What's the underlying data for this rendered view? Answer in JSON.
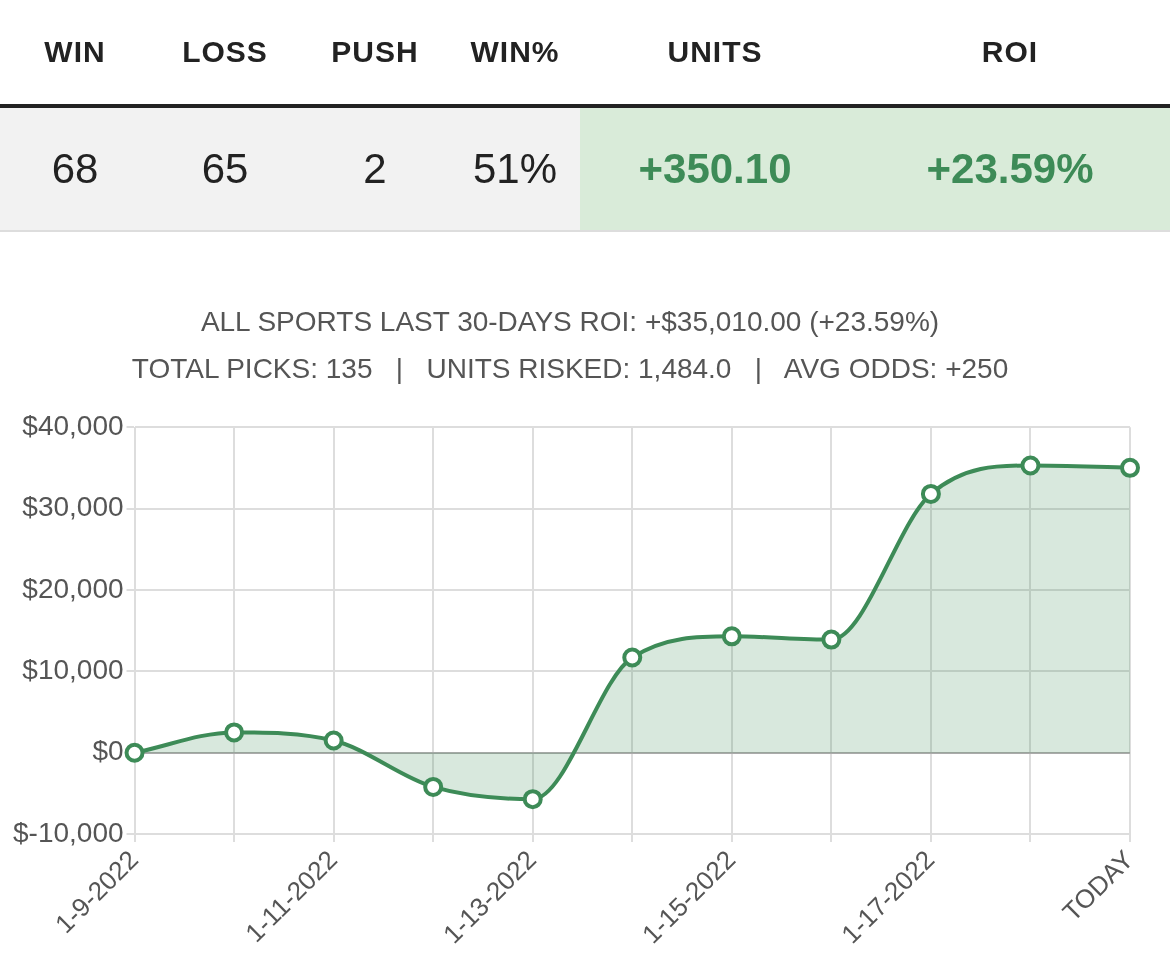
{
  "chart_data": [
    {
      "type": "other",
      "categories": [
        "WIN",
        "LOSS",
        "PUSH",
        "WIN%",
        "UNITS",
        "ROI"
      ],
      "value_labels": [
        "68",
        "65",
        "2",
        "51%",
        "+350.10",
        "+23.59%"
      ]
    },
    {
      "type": "area",
      "title": "ALL SPORTS LAST 30-DAYS ROI: +$35,010.00 (+23.59%)",
      "subtitle": "TOTAL PICKS: 135   |   UNITS RISKED: 1,484.0   |   AVG ODDS: +250",
      "categories": [
        "1-9-2022",
        null,
        "1-11-2022",
        null,
        "1-13-2022",
        null,
        "1-15-2022",
        null,
        "1-17-2022",
        null,
        "TODAY"
      ],
      "series": [
        {
          "color": "#3d8b57",
          "values": [
            0,
            2500,
            1500,
            -4200,
            -5700,
            11700,
            14300,
            13900,
            31800,
            35300,
            35010
          ]
        }
      ],
      "ylim": [
        -10000,
        40000
      ],
      "yticks": [
        {
          "value": -10000,
          "label": "$-10,000"
        },
        {
          "value": 0,
          "label": "$0"
        },
        {
          "value": 10000,
          "label": "$10,000"
        },
        {
          "value": 20000,
          "label": "$20,000"
        },
        {
          "value": 30000,
          "label": "$30,000"
        },
        {
          "value": 40000,
          "label": "$40,000"
        }
      ],
      "grid": true,
      "legend": false,
      "marker": "circle",
      "line_style": "solid"
    }
  ]
}
